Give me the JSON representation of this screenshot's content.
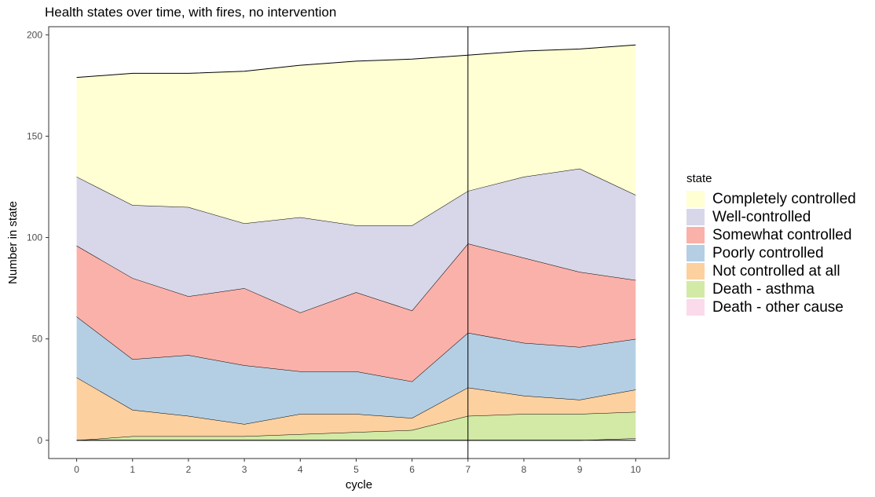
{
  "title": "Health states over time, with fires, no intervention",
  "chart_data": {
    "type": "area",
    "stacked": true,
    "title": "Health states over time, with fires, no intervention",
    "xlabel": "cycle",
    "ylabel": "Number in state",
    "x": [
      0,
      1,
      2,
      3,
      4,
      5,
      6,
      7,
      8,
      9,
      10
    ],
    "xlim": [
      -0.5,
      10.6
    ],
    "ylim": [
      -9,
      204
    ],
    "xticks": [
      0,
      1,
      2,
      3,
      4,
      5,
      6,
      7,
      8,
      9,
      10
    ],
    "yticks": [
      0,
      50,
      100,
      150,
      200
    ],
    "vline_x": 7,
    "grid": false,
    "legend_title": "state",
    "legend_position": "right",
    "series_order_bottom_to_top": [
      "Death - other cause",
      "Death - asthma",
      "Not controlled at all",
      "Poorly controlled",
      "Somewhat controlled",
      "Well-controlled",
      "Completely controlled"
    ],
    "series": [
      {
        "name": "Completely controlled",
        "color": "#FFFFD3",
        "values": [
          49,
          65,
          66,
          75,
          75,
          81,
          82,
          67,
          62,
          59,
          74
        ]
      },
      {
        "name": "Well-controlled",
        "color": "#D8D7E9",
        "values": [
          34,
          36,
          44,
          32,
          47,
          33,
          42,
          26,
          40,
          51,
          42
        ]
      },
      {
        "name": "Somewhat controlled",
        "color": "#FAB1AA",
        "values": [
          35,
          40,
          29,
          38,
          29,
          39,
          35,
          44,
          42,
          37,
          29
        ]
      },
      {
        "name": "Poorly controlled",
        "color": "#B4CFE4",
        "values": [
          30,
          25,
          30,
          29,
          21,
          21,
          18,
          27,
          26,
          26,
          25
        ]
      },
      {
        "name": "Not controlled at all",
        "color": "#FDD09F",
        "values": [
          31,
          13,
          10,
          6,
          10,
          9,
          6,
          14,
          9,
          7,
          11
        ]
      },
      {
        "name": "Death - asthma",
        "color": "#D2EAA5",
        "values": [
          0,
          2,
          2,
          2,
          3,
          4,
          5,
          12,
          13,
          13,
          13
        ]
      },
      {
        "name": "Death - other cause",
        "color": "#FBDAEB",
        "values": [
          0,
          0,
          0,
          0,
          0,
          0,
          0,
          0,
          0,
          0,
          1
        ]
      }
    ]
  }
}
